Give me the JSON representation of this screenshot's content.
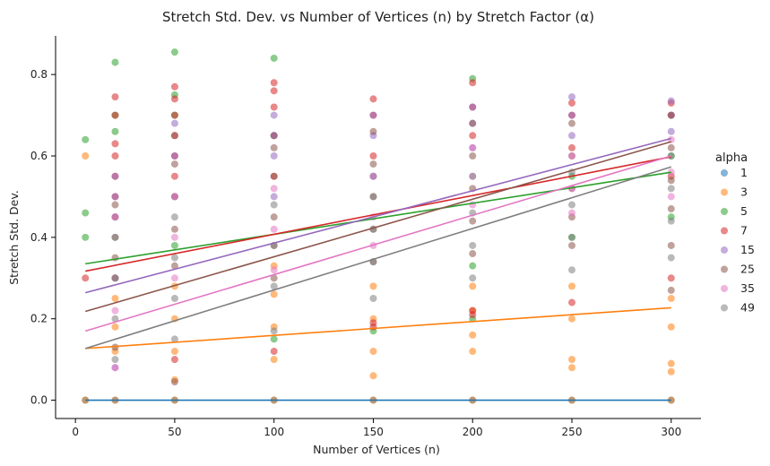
{
  "chart_data": {
    "type": "scatter",
    "title": "Stretch Std. Dev. vs Number of Vertices (n) by Stretch Factor (α)",
    "xlabel": "Number of Vertices (n)",
    "ylabel": "Stretch Std. Dev.",
    "xlim": [
      -10,
      315
    ],
    "ylim": [
      -0.045,
      0.895
    ],
    "xticks": [
      0,
      50,
      100,
      150,
      200,
      250,
      300
    ],
    "yticks": [
      0.0,
      0.2,
      0.4,
      0.6,
      0.8
    ],
    "xtick_labels": [
      "0",
      "50",
      "100",
      "150",
      "200",
      "250",
      "300"
    ],
    "ytick_labels": [
      "0.0",
      "0.2",
      "0.4",
      "0.6",
      "0.8"
    ],
    "legend": {
      "title": "alpha",
      "placement": "right-outside"
    },
    "x": [
      5,
      20,
      50,
      100,
      150,
      200,
      250,
      300
    ],
    "series": [
      {
        "name": "1",
        "color": "#1f77b4",
        "fit": [
          [
            5,
            0.0
          ],
          [
            300,
            0.0
          ]
        ],
        "points": [
          [
            5,
            0
          ],
          [
            20,
            0
          ],
          [
            50,
            0
          ],
          [
            100,
            0
          ],
          [
            150,
            0
          ],
          [
            200,
            0
          ],
          [
            250,
            0
          ],
          [
            300,
            0
          ]
        ]
      },
      {
        "name": "3",
        "color": "#ff7f0e",
        "fit": [
          [
            5,
            0.127
          ],
          [
            300,
            0.227
          ]
        ],
        "points": [
          [
            5,
            0.6
          ],
          [
            5,
            0.0
          ],
          [
            20,
            0.0
          ],
          [
            20,
            0.12
          ],
          [
            20,
            0.18
          ],
          [
            20,
            0.25
          ],
          [
            50,
            0.0
          ],
          [
            50,
            0.05
          ],
          [
            50,
            0.12
          ],
          [
            50,
            0.2
          ],
          [
            50,
            0.28
          ],
          [
            100,
            0.0
          ],
          [
            100,
            0.1
          ],
          [
            100,
            0.18
          ],
          [
            100,
            0.26
          ],
          [
            100,
            0.33
          ],
          [
            150,
            0.0
          ],
          [
            150,
            0.06
          ],
          [
            150,
            0.12
          ],
          [
            150,
            0.2
          ],
          [
            150,
            0.28
          ],
          [
            200,
            0.0
          ],
          [
            200,
            0.12
          ],
          [
            200,
            0.16
          ],
          [
            200,
            0.22
          ],
          [
            200,
            0.28
          ],
          [
            250,
            0.0
          ],
          [
            250,
            0.08
          ],
          [
            250,
            0.1
          ],
          [
            250,
            0.2
          ],
          [
            250,
            0.28
          ],
          [
            300,
            0.0
          ],
          [
            300,
            0.07
          ],
          [
            300,
            0.09
          ],
          [
            300,
            0.18
          ],
          [
            300,
            0.25
          ]
        ]
      },
      {
        "name": "5",
        "color": "#2ca02c",
        "fit": [
          [
            5,
            0.335
          ],
          [
            300,
            0.56
          ]
        ],
        "points": [
          [
            5,
            0.64
          ],
          [
            5,
            0.46
          ],
          [
            5,
            0.4
          ],
          [
            20,
            0.83
          ],
          [
            20,
            0.7
          ],
          [
            20,
            0.66
          ],
          [
            20,
            0.3
          ],
          [
            50,
            0.855
          ],
          [
            50,
            0.75
          ],
          [
            50,
            0.7
          ],
          [
            50,
            0.38
          ],
          [
            100,
            0.84
          ],
          [
            100,
            0.65
          ],
          [
            100,
            0.15
          ],
          [
            150,
            0.55
          ],
          [
            150,
            0.17
          ],
          [
            200,
            0.79
          ],
          [
            200,
            0.33
          ],
          [
            200,
            0.2
          ],
          [
            250,
            0.55
          ],
          [
            250,
            0.4
          ],
          [
            300,
            0.6
          ],
          [
            300,
            0.45
          ]
        ]
      },
      {
        "name": "7",
        "color": "#d62728",
        "fit": [
          [
            5,
            0.317
          ],
          [
            300,
            0.598
          ]
        ],
        "points": [
          [
            5,
            0.3
          ],
          [
            20,
            0.745
          ],
          [
            20,
            0.7
          ],
          [
            20,
            0.63
          ],
          [
            20,
            0.6
          ],
          [
            20,
            0.55
          ],
          [
            20,
            0.5
          ],
          [
            50,
            0.77
          ],
          [
            50,
            0.74
          ],
          [
            50,
            0.7
          ],
          [
            50,
            0.65
          ],
          [
            50,
            0.6
          ],
          [
            50,
            0.55
          ],
          [
            50,
            0.1
          ],
          [
            100,
            0.78
          ],
          [
            100,
            0.76
          ],
          [
            100,
            0.72
          ],
          [
            100,
            0.65
          ],
          [
            100,
            0.55
          ],
          [
            100,
            0.12
          ],
          [
            150,
            0.74
          ],
          [
            150,
            0.7
          ],
          [
            150,
            0.6
          ],
          [
            150,
            0.19
          ],
          [
            150,
            0.18
          ],
          [
            200,
            0.78
          ],
          [
            200,
            0.72
          ],
          [
            200,
            0.65
          ],
          [
            200,
            0.22
          ],
          [
            200,
            0.21
          ],
          [
            250,
            0.73
          ],
          [
            250,
            0.7
          ],
          [
            250,
            0.62
          ],
          [
            250,
            0.24
          ],
          [
            300,
            0.73
          ],
          [
            300,
            0.7
          ],
          [
            300,
            0.55
          ],
          [
            300,
            0.3
          ]
        ]
      },
      {
        "name": "15",
        "color": "#9467bd",
        "fit": [
          [
            5,
            0.264
          ],
          [
            300,
            0.643
          ]
        ],
        "points": [
          [
            20,
            0.55
          ],
          [
            20,
            0.5
          ],
          [
            20,
            0.45
          ],
          [
            20,
            0.08
          ],
          [
            50,
            0.68
          ],
          [
            50,
            0.6
          ],
          [
            50,
            0.5
          ],
          [
            100,
            0.7
          ],
          [
            100,
            0.65
          ],
          [
            100,
            0.6
          ],
          [
            100,
            0.5
          ],
          [
            150,
            0.7
          ],
          [
            150,
            0.65
          ],
          [
            150,
            0.55
          ],
          [
            200,
            0.72
          ],
          [
            200,
            0.68
          ],
          [
            200,
            0.62
          ],
          [
            250,
            0.745
          ],
          [
            250,
            0.7
          ],
          [
            250,
            0.65
          ],
          [
            300,
            0.735
          ],
          [
            300,
            0.7
          ],
          [
            300,
            0.66
          ]
        ]
      },
      {
        "name": "25",
        "color": "#8c564b",
        "fit": [
          [
            5,
            0.218
          ],
          [
            300,
            0.635
          ]
        ],
        "points": [
          [
            20,
            0.48
          ],
          [
            20,
            0.45
          ],
          [
            20,
            0.4
          ],
          [
            20,
            0.35
          ],
          [
            20,
            0.3
          ],
          [
            20,
            0.13
          ],
          [
            50,
            0.65
          ],
          [
            50,
            0.58
          ],
          [
            50,
            0.5
          ],
          [
            50,
            0.42
          ],
          [
            50,
            0.33
          ],
          [
            50,
            0.045
          ],
          [
            100,
            0.62
          ],
          [
            100,
            0.55
          ],
          [
            100,
            0.45
          ],
          [
            100,
            0.38
          ],
          [
            100,
            0.3
          ],
          [
            150,
            0.66
          ],
          [
            150,
            0.58
          ],
          [
            150,
            0.5
          ],
          [
            150,
            0.42
          ],
          [
            150,
            0.34
          ],
          [
            200,
            0.68
          ],
          [
            200,
            0.6
          ],
          [
            200,
            0.52
          ],
          [
            200,
            0.44
          ],
          [
            200,
            0.36
          ],
          [
            250,
            0.68
          ],
          [
            250,
            0.6
          ],
          [
            250,
            0.52
          ],
          [
            250,
            0.45
          ],
          [
            250,
            0.38
          ],
          [
            300,
            0.7
          ],
          [
            300,
            0.62
          ],
          [
            300,
            0.54
          ],
          [
            300,
            0.47
          ],
          [
            300,
            0.38
          ],
          [
            300,
            0.27
          ]
        ]
      },
      {
        "name": "35",
        "color": "#e377c2",
        "fit": [
          [
            5,
            0.17
          ],
          [
            300,
            0.6
          ]
        ],
        "points": [
          [
            20,
            0.45
          ],
          [
            20,
            0.3
          ],
          [
            20,
            0.22
          ],
          [
            20,
            0.08
          ],
          [
            50,
            0.5
          ],
          [
            50,
            0.4
          ],
          [
            50,
            0.3
          ],
          [
            100,
            0.52
          ],
          [
            100,
            0.42
          ],
          [
            100,
            0.32
          ],
          [
            150,
            0.55
          ],
          [
            150,
            0.45
          ],
          [
            150,
            0.38
          ],
          [
            200,
            0.62
          ],
          [
            200,
            0.55
          ],
          [
            200,
            0.48
          ],
          [
            250,
            0.6
          ],
          [
            250,
            0.52
          ],
          [
            250,
            0.46
          ],
          [
            300,
            0.64
          ],
          [
            300,
            0.56
          ],
          [
            300,
            0.5
          ]
        ]
      },
      {
        "name": "49",
        "color": "#7f7f7f",
        "fit": [
          [
            5,
            0.127
          ],
          [
            300,
            0.573
          ]
        ],
        "points": [
          [
            20,
            0.4
          ],
          [
            20,
            0.3
          ],
          [
            20,
            0.2
          ],
          [
            20,
            0.1
          ],
          [
            50,
            0.45
          ],
          [
            50,
            0.35
          ],
          [
            50,
            0.25
          ],
          [
            50,
            0.15
          ],
          [
            100,
            0.48
          ],
          [
            100,
            0.38
          ],
          [
            100,
            0.28
          ],
          [
            100,
            0.17
          ],
          [
            150,
            0.5
          ],
          [
            150,
            0.42
          ],
          [
            150,
            0.34
          ],
          [
            150,
            0.25
          ],
          [
            200,
            0.55
          ],
          [
            200,
            0.46
          ],
          [
            200,
            0.38
          ],
          [
            200,
            0.3
          ],
          [
            250,
            0.56
          ],
          [
            250,
            0.48
          ],
          [
            250,
            0.4
          ],
          [
            250,
            0.32
          ],
          [
            300,
            0.6
          ],
          [
            300,
            0.52
          ],
          [
            300,
            0.44
          ],
          [
            300,
            0.35
          ]
        ]
      }
    ]
  }
}
